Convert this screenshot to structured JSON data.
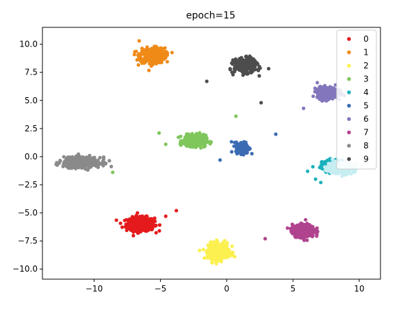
{
  "chart_data": {
    "type": "scatter",
    "title": "epoch=15",
    "xlabel": "",
    "ylabel": "",
    "xlim": [
      -13.9,
      11.6
    ],
    "ylim": [
      -10.9,
      11.5
    ],
    "xticks": [
      -10,
      -5,
      0,
      5,
      10
    ],
    "xtick_labels": [
      "−10",
      "−5",
      "0",
      "5",
      "10"
    ],
    "yticks": [
      -10.0,
      -7.5,
      -5.0,
      -2.5,
      0.0,
      2.5,
      5.0,
      7.5,
      10.0
    ],
    "ytick_labels": [
      "−10.0",
      "−7.5",
      "−5.0",
      "−2.5",
      "0.0",
      "2.5",
      "5.0",
      "7.5",
      "10.0"
    ],
    "grid": false,
    "legend_position": "top-right",
    "series": [
      {
        "name": "0",
        "color": "#e41a1c",
        "center": [
          -6.5,
          -6.0
        ],
        "spread": [
          0.95,
          0.55
        ],
        "count": 420,
        "outliers": [
          [
            -3.8,
            -4.8
          ],
          [
            -4.6,
            -5.3
          ]
        ]
      },
      {
        "name": "1",
        "color": "#ef8a17",
        "center": [
          -5.6,
          9.0
        ],
        "spread": [
          0.85,
          0.6
        ],
        "count": 420,
        "outliers": [
          [
            -6.6,
            10.3
          ]
        ]
      },
      {
        "name": "2",
        "color": "#fbf04f",
        "center": [
          -0.6,
          -8.4
        ],
        "spread": [
          0.7,
          0.65
        ],
        "count": 420,
        "outliers": [
          [
            0.6,
            -8.9
          ]
        ]
      },
      {
        "name": "3",
        "color": "#7fc65c",
        "center": [
          -2.4,
          1.4
        ],
        "spread": [
          0.75,
          0.45
        ],
        "count": 360,
        "outliers": [
          [
            0.7,
            3.6
          ],
          [
            -4.6,
            1.1
          ],
          [
            -5.1,
            2.1
          ],
          [
            -8.6,
            -1.4
          ]
        ]
      },
      {
        "name": "4",
        "color": "#1ab0bd",
        "center": [
          8.0,
          -0.8
        ],
        "spread": [
          0.7,
          0.45
        ],
        "count": 260,
        "outliers": [
          [
            6.1,
            -1.3
          ],
          [
            6.5,
            -0.9
          ],
          [
            6.7,
            -2.0
          ],
          [
            7.1,
            -2.3
          ]
        ]
      },
      {
        "name": "5",
        "color": "#3b6cb3",
        "center": [
          1.2,
          0.8
        ],
        "spread": [
          0.45,
          0.45
        ],
        "count": 200,
        "outliers": [
          [
            3.7,
            2.0
          ],
          [
            -0.5,
            -0.3
          ]
        ]
      },
      {
        "name": "6",
        "color": "#8476bc",
        "center": [
          7.6,
          5.7
        ],
        "spread": [
          0.7,
          0.45
        ],
        "count": 380,
        "outliers": [
          [
            5.8,
            4.3
          ]
        ]
      },
      {
        "name": "7",
        "color": "#b0438e",
        "center": [
          5.8,
          -6.6
        ],
        "spread": [
          0.75,
          0.5
        ],
        "count": 420,
        "outliers": [
          [
            2.9,
            -7.3
          ]
        ]
      },
      {
        "name": "8",
        "color": "#8a8a8a",
        "center": [
          -10.9,
          -0.5
        ],
        "spread": [
          1.25,
          0.4
        ],
        "count": 520,
        "outliers": []
      },
      {
        "name": "9",
        "color": "#4d4d4d",
        "center": [
          1.4,
          8.1
        ],
        "spread": [
          0.75,
          0.55
        ],
        "count": 380,
        "outliers": [
          [
            -1.5,
            6.7
          ],
          [
            2.6,
            4.8
          ]
        ]
      }
    ],
    "overlay": {
      "color": "#c6eef2",
      "center": [
        8.6,
        -1.0
      ],
      "spread": [
        0.9,
        0.45
      ],
      "count": 320
    }
  }
}
